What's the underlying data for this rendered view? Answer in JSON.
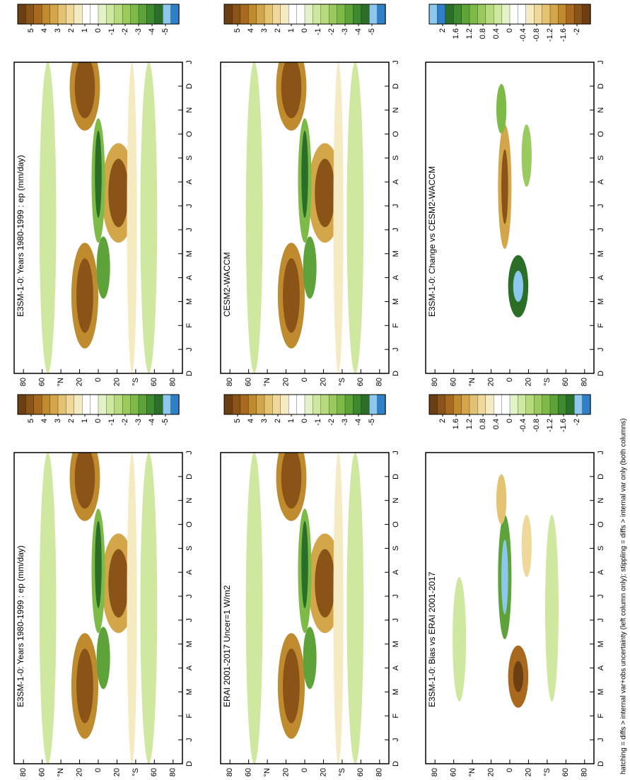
{
  "chart_data": [
    {
      "type": "contour",
      "title": "E3SM-1-0: Years 1980-1999 : ep (mm/day)",
      "categories": [
        "D",
        "J",
        "F",
        "M",
        "A",
        "M",
        "J",
        "J",
        "A",
        "S",
        "O",
        "N",
        "D",
        "J"
      ],
      "xlim": [
        90,
        -90
      ],
      "xticks": [
        80,
        60,
        {
          "value": 40,
          "label": "°N"
        },
        20,
        0,
        {
          "value": -20,
          "label": "20"
        },
        {
          "value": -40,
          "label": "°S"
        },
        {
          "value": -60,
          "label": "60"
        },
        {
          "value": -80,
          "label": "80"
        }
      ],
      "colorbar": {
        "lim": [
          6,
          -6
        ],
        "ticks": [
          5,
          4,
          3,
          2,
          1,
          0,
          -1,
          -2,
          -3,
          -4,
          -5
        ],
        "colors": [
          "#6b3f12",
          "#8a5317",
          "#a8691f",
          "#c08a2e",
          "#d4a64a",
          "#e3c272",
          "#eed99a",
          "#f5ebc3",
          "#ffffff",
          "#ffffff",
          "#e4f2c8",
          "#cfe8a0",
          "#b6da7c",
          "#9bcb5e",
          "#7dba48",
          "#5ea23a",
          "#3e8a30",
          "#2a6e28",
          "#8cc8ee",
          "#2f7fc9"
        ]
      }
    },
    {
      "type": "contour",
      "title": "CESM2-WACCM",
      "categories": [
        "D",
        "J",
        "F",
        "M",
        "A",
        "M",
        "J",
        "J",
        "A",
        "S",
        "O",
        "N",
        "D",
        "J"
      ],
      "xlim": [
        90,
        -90
      ],
      "xticks": [
        80,
        60,
        {
          "value": 40,
          "label": "°N"
        },
        20,
        0,
        {
          "value": -20,
          "label": "20"
        },
        {
          "value": -40,
          "label": "°S"
        },
        {
          "value": -60,
          "label": "60"
        },
        {
          "value": -80,
          "label": "80"
        }
      ],
      "colorbar": {
        "lim": [
          6,
          -6
        ],
        "ticks": [
          5,
          4,
          3,
          2,
          1,
          0,
          -1,
          -2,
          -3,
          -4,
          -5
        ],
        "colors": [
          "#6b3f12",
          "#8a5317",
          "#a8691f",
          "#c08a2e",
          "#d4a64a",
          "#e3c272",
          "#eed99a",
          "#f5ebc3",
          "#ffffff",
          "#ffffff",
          "#e4f2c8",
          "#cfe8a0",
          "#b6da7c",
          "#9bcb5e",
          "#7dba48",
          "#5ea23a",
          "#3e8a30",
          "#2a6e28",
          "#8cc8ee",
          "#2f7fc9"
        ]
      }
    },
    {
      "type": "contour",
      "title": "E3SM-1-0: Change vs CESM2-WACCM",
      "categories": [
        "D",
        "J",
        "F",
        "M",
        "A",
        "M",
        "J",
        "J",
        "A",
        "S",
        "O",
        "N",
        "D",
        "J"
      ],
      "xlim": [
        90,
        -90
      ],
      "xticks": [
        80,
        60,
        {
          "value": 40,
          "label": "°N"
        },
        20,
        0,
        {
          "value": -20,
          "label": "20"
        },
        {
          "value": -40,
          "label": "°S"
        },
        {
          "value": -60,
          "label": "60"
        },
        {
          "value": -80,
          "label": "80"
        }
      ],
      "colorbar": {
        "lim": [
          2.4,
          -2.4
        ],
        "ticks": [
          2,
          1.6,
          1.2,
          0.8,
          0.4,
          0,
          -0.4,
          -0.8,
          -1.2,
          -1.6,
          -2
        ],
        "colors": [
          "#8cc8ee",
          "#2f7fc9",
          "#2a6e28",
          "#3e8a30",
          "#5ea23a",
          "#7dba48",
          "#9bcb5e",
          "#b6da7c",
          "#cfe8a0",
          "#e4f2c8",
          "#ffffff",
          "#ffffff",
          "#f5ebc3",
          "#eed99a",
          "#e3c272",
          "#d4a64a",
          "#c08a2e",
          "#a8691f",
          "#8a5317",
          "#6b3f12"
        ]
      }
    },
    {
      "type": "contour",
      "title": "E3SM-1-0: Years 1980-1999 : ep (mm/day)",
      "categories": [
        "D",
        "J",
        "F",
        "M",
        "A",
        "M",
        "J",
        "J",
        "A",
        "S",
        "O",
        "N",
        "D",
        "J"
      ],
      "xlim": [
        90,
        -90
      ],
      "xticks": [
        80,
        60,
        {
          "value": 40,
          "label": "°N"
        },
        20,
        0,
        {
          "value": -20,
          "label": "20"
        },
        {
          "value": -40,
          "label": "°S"
        },
        {
          "value": -60,
          "label": "60"
        },
        {
          "value": -80,
          "label": "80"
        }
      ],
      "colorbar": {
        "lim": [
          6,
          -6
        ],
        "ticks": [
          5,
          4,
          3,
          2,
          1,
          0,
          -1,
          -2,
          -3,
          -4,
          -5
        ],
        "colors": [
          "#6b3f12",
          "#8a5317",
          "#a8691f",
          "#c08a2e",
          "#d4a64a",
          "#e3c272",
          "#eed99a",
          "#f5ebc3",
          "#ffffff",
          "#ffffff",
          "#e4f2c8",
          "#cfe8a0",
          "#b6da7c",
          "#9bcb5e",
          "#7dba48",
          "#5ea23a",
          "#3e8a30",
          "#2a6e28",
          "#8cc8ee",
          "#2f7fc9"
        ]
      }
    },
    {
      "type": "contour",
      "title": "ERAI 2001-2017 Uncer=1 W/m2",
      "categories": [
        "D",
        "J",
        "F",
        "M",
        "A",
        "M",
        "J",
        "J",
        "A",
        "S",
        "O",
        "N",
        "D",
        "J"
      ],
      "xlim": [
        90,
        -90
      ],
      "xticks": [
        80,
        60,
        {
          "value": 40,
          "label": "°N"
        },
        20,
        0,
        {
          "value": -20,
          "label": "20"
        },
        {
          "value": -40,
          "label": "°S"
        },
        {
          "value": -60,
          "label": "60"
        },
        {
          "value": -80,
          "label": "80"
        }
      ],
      "colorbar": {
        "lim": [
          6,
          -6
        ],
        "ticks": [
          5,
          4,
          3,
          2,
          1,
          0,
          -1,
          -2,
          -3,
          -4,
          -5
        ],
        "colors": [
          "#6b3f12",
          "#8a5317",
          "#a8691f",
          "#c08a2e",
          "#d4a64a",
          "#e3c272",
          "#eed99a",
          "#f5ebc3",
          "#ffffff",
          "#ffffff",
          "#e4f2c8",
          "#cfe8a0",
          "#b6da7c",
          "#9bcb5e",
          "#7dba48",
          "#5ea23a",
          "#3e8a30",
          "#2a6e28",
          "#8cc8ee",
          "#2f7fc9"
        ]
      }
    },
    {
      "type": "contour",
      "title": "E3SM-1-0: Bias vs ERAI 2001-2017",
      "categories": [
        "D",
        "J",
        "F",
        "M",
        "A",
        "M",
        "J",
        "J",
        "A",
        "S",
        "O",
        "N",
        "D",
        "J"
      ],
      "xlim": [
        90,
        -90
      ],
      "xticks": [
        80,
        60,
        {
          "value": 40,
          "label": "°N"
        },
        20,
        0,
        {
          "value": -20,
          "label": "20"
        },
        {
          "value": -40,
          "label": "°S"
        },
        {
          "value": -60,
          "label": "60"
        },
        {
          "value": -80,
          "label": "80"
        }
      ],
      "colorbar": {
        "lim": [
          2.4,
          -2.4
        ],
        "ticks": [
          2,
          1.6,
          1.2,
          0.8,
          0.4,
          0,
          -0.4,
          -0.8,
          -1.2,
          -1.6,
          -2
        ],
        "colors": [
          "#6b3f12",
          "#8a5317",
          "#a8691f",
          "#c08a2e",
          "#d4a64a",
          "#e3c272",
          "#eed99a",
          "#f5ebc3",
          "#ffffff",
          "#ffffff",
          "#e4f2c8",
          "#cfe8a0",
          "#b6da7c",
          "#9bcb5e",
          "#7dba48",
          "#5ea23a",
          "#3e8a30",
          "#2a6e28",
          "#8cc8ee",
          "#2f7fc9"
        ]
      }
    }
  ],
  "footnote": "hatching = diffs > internal var+obs uncertainty (left column only); stippling = diffs > internal var only (both columns)"
}
